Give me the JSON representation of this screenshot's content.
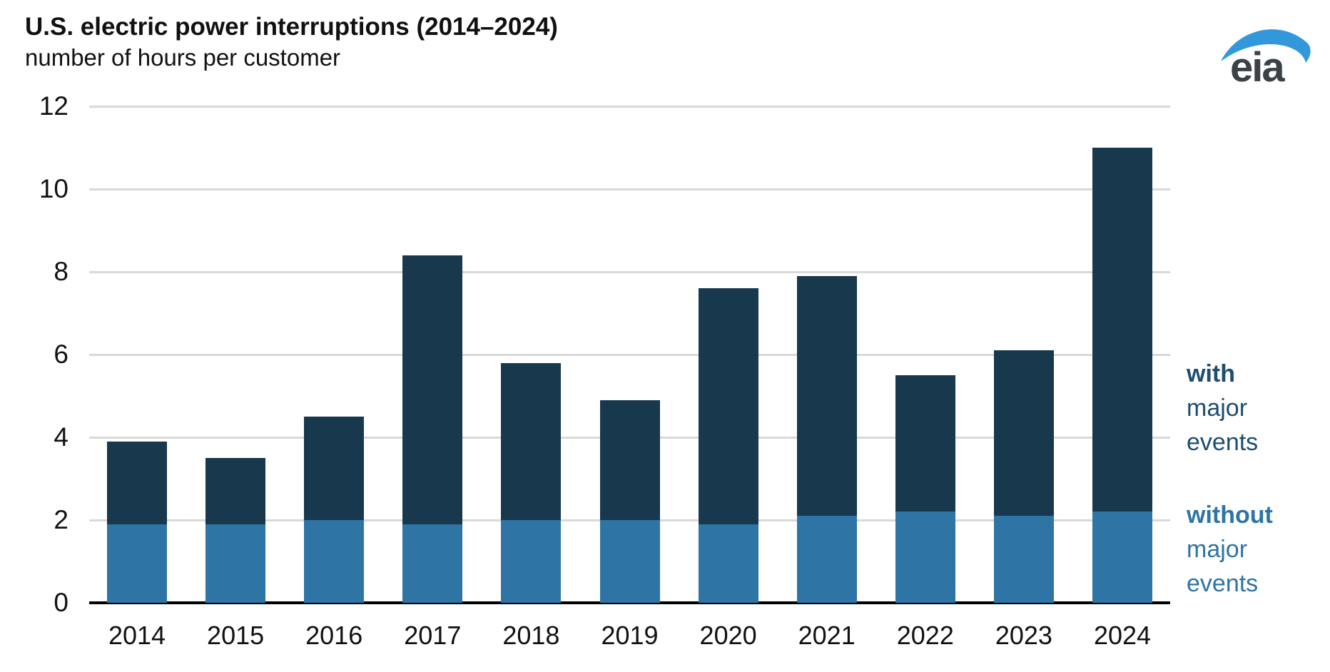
{
  "title": "U.S. electric power interruptions (2014–2024)",
  "subtitle": "number of hours per customer",
  "logo": {
    "text": "eia",
    "text_color": "#3b4147",
    "swoosh_color": "#3398db"
  },
  "chart_data": {
    "type": "bar",
    "stacked": true,
    "title": "U.S. electric power interruptions (2014–2024)",
    "unit_label": "number of hours per customer",
    "categories": [
      "2014",
      "2015",
      "2016",
      "2017",
      "2018",
      "2019",
      "2020",
      "2021",
      "2022",
      "2023",
      "2024"
    ],
    "series": [
      {
        "name": "without major events",
        "key": "without",
        "color": "#2E74A4",
        "values": [
          1.9,
          1.9,
          2.0,
          1.9,
          2.0,
          2.0,
          1.9,
          2.1,
          2.2,
          2.1,
          2.2
        ]
      },
      {
        "name": "with major events",
        "key": "with",
        "color": "#17384D",
        "values": [
          2.0,
          1.6,
          2.5,
          6.5,
          3.8,
          2.9,
          5.7,
          5.8,
          3.3,
          4.0,
          8.8
        ]
      }
    ],
    "stack_totals": [
      3.9,
      3.5,
      4.5,
      8.4,
      5.8,
      4.9,
      7.6,
      7.9,
      5.5,
      6.1,
      11.0
    ],
    "yticks": [
      0,
      2,
      4,
      6,
      8,
      10,
      12
    ],
    "ylim": [
      0,
      12
    ],
    "grid": true,
    "legend_position": "right",
    "colors": {
      "gridline": "#d9d9d9",
      "axis": "#000000"
    }
  },
  "legend": {
    "with": {
      "lines": [
        "with",
        "major",
        "events"
      ],
      "color": "#1D4D70"
    },
    "without": {
      "lines": [
        "without",
        "major",
        "events"
      ],
      "color": "#2E74A4"
    }
  }
}
